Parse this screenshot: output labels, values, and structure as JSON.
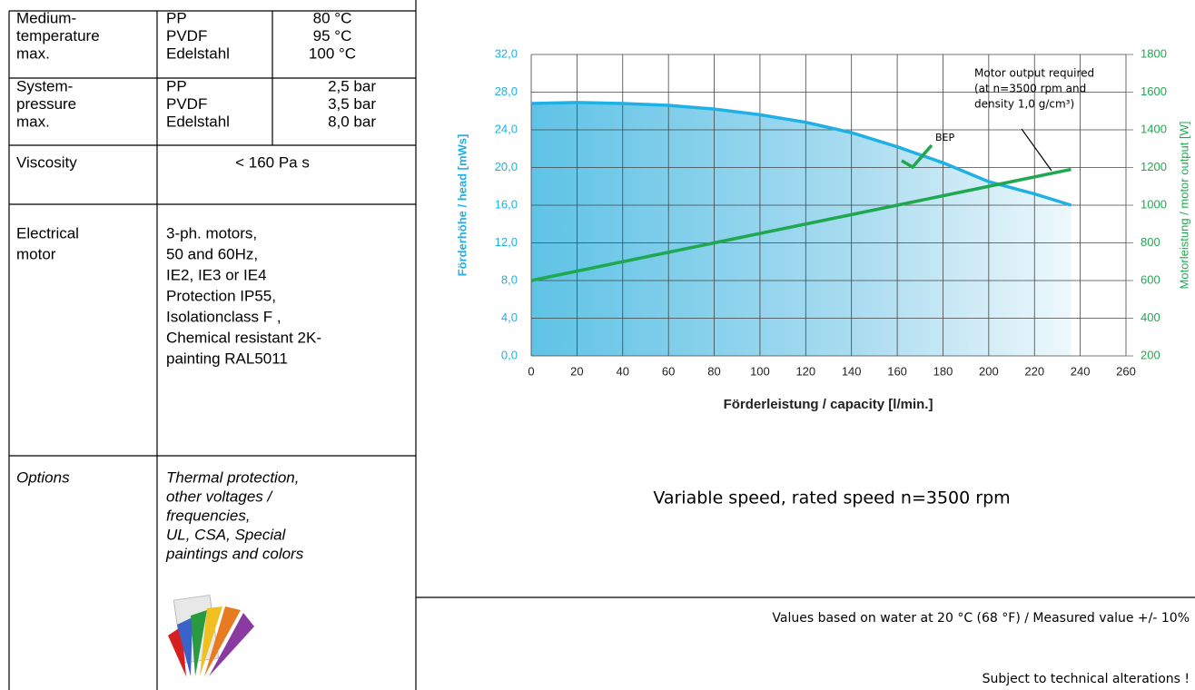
{
  "table": {
    "rows": [
      {
        "label": [
          "Medium-",
          "temperature",
          "max."
        ],
        "items": [
          [
            "PP",
            "80 °C"
          ],
          [
            "PVDF",
            "95 °C"
          ],
          [
            "Edelstahl",
            "100 °C"
          ]
        ]
      },
      {
        "label": [
          "System-",
          "pressure",
          "max."
        ],
        "items": [
          [
            "PP",
            "2,5 bar"
          ],
          [
            "PVDF",
            "3,5 bar"
          ],
          [
            "Edelstahl",
            "8,0 bar"
          ]
        ]
      },
      {
        "label": [
          "Viscosity"
        ],
        "text": [
          "< 160 Pa s"
        ]
      },
      {
        "label": [
          "Electrical",
          "motor"
        ],
        "text": [
          "3-ph. motors,",
          "50 and 60Hz,",
          "IE2, IE3 or IE4",
          "Protection IP55,",
          "Isolationclass F ,",
          "Chemical resistant 2K-",
          "painting RAL5011"
        ]
      },
      {
        "label": [
          "Options"
        ],
        "text": [
          "Thermal protection,",
          "other voltages /",
          "frequencies,",
          "UL, CSA, Special",
          "paintings and colors"
        ]
      }
    ]
  },
  "chart_data": {
    "type": "line",
    "x_label": "Förderleistung / capacity  [l/min.]",
    "y_label": "Förderhöhe / head  [mWs]",
    "y2_label": "Motorleistung / motor output [W]",
    "x": [
      0,
      20,
      40,
      60,
      80,
      100,
      120,
      140,
      160,
      180,
      200,
      220,
      236
    ],
    "series": [
      {
        "name": "head",
        "color": "#1fb0e6",
        "values": [
          26.8,
          26.9,
          26.8,
          26.6,
          26.2,
          25.6,
          24.8,
          23.7,
          22.2,
          20.5,
          18.5,
          17.2,
          16.0
        ]
      },
      {
        "name": "motor output",
        "color": "#1fa84f",
        "axis": "y2",
        "values": [
          600,
          650,
          700,
          750,
          800,
          850,
          900,
          950,
          1000,
          1050,
          1100,
          1150,
          1190
        ]
      }
    ],
    "xlim": [
      0,
      260
    ],
    "xticks": [
      0,
      20,
      40,
      60,
      80,
      100,
      120,
      140,
      160,
      180,
      200,
      220,
      240,
      260
    ],
    "ylim": [
      0,
      32
    ],
    "yticks": [
      {
        "value": 0,
        "label": "0,0"
      },
      {
        "value": 4,
        "label": "4,0"
      },
      {
        "value": 8,
        "label": "8,0"
      },
      {
        "value": 12,
        "label": "12,0"
      },
      {
        "value": 16,
        "label": "16,0"
      },
      {
        "value": 20,
        "label": "20,0"
      },
      {
        "value": 24,
        "label": "24,0"
      },
      {
        "value": 28,
        "label": "28,0"
      },
      {
        "value": 32,
        "label": "32,0"
      }
    ],
    "y2lim": [
      200,
      1800
    ],
    "y2ticks": [
      200,
      400,
      600,
      800,
      1000,
      1200,
      1400,
      1600,
      1800
    ],
    "grid": true,
    "bep_label": "BEP",
    "annotation": [
      "Motor output required",
      "(at n=3500 rpm and",
      "density 1,0 g/cm³)"
    ]
  },
  "caption": "Variable speed, rated speed  n=3500 rpm",
  "note": "Values based on water at 20 °C   (68 °F)  /  Measured value  +/- 10%",
  "disclaimer": "Subject to technical alterations !"
}
